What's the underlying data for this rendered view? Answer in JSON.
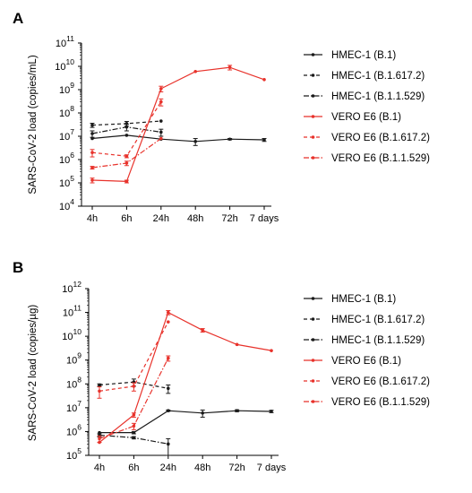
{
  "colors": {
    "black": "#1a1a1a",
    "red": "#e8322b"
  },
  "chart_data": [
    {
      "panel": "A",
      "type": "line",
      "ylabel": "SARS-CoV-2 load (copies/mL)",
      "categories": [
        "4h",
        "6h",
        "24h",
        "48h",
        "72h",
        "7 days"
      ],
      "yscale": "log",
      "ylim": [
        10000,
        100000000000
      ],
      "yticks": [
        4,
        5,
        6,
        7,
        8,
        9,
        10,
        11
      ],
      "series": [
        {
          "name": "HMEC-1 (B.1)",
          "color": "#1a1a1a",
          "dash": "solid",
          "values": [
            8000000,
            11000000,
            7500000,
            6000000,
            7500000,
            7000000
          ],
          "err": [
            0,
            0,
            0,
            2000000,
            500000,
            1000000
          ]
        },
        {
          "name": "HMEC-1 (B.1.617.2)",
          "color": "#1a1a1a",
          "dash": "dash",
          "values": [
            30000000,
            35000000,
            45000000,
            null,
            null,
            null
          ],
          "err": [
            6000000,
            8000000,
            0,
            null,
            null,
            null
          ]
        },
        {
          "name": "HMEC-1 (B.1.1.529)",
          "color": "#1a1a1a",
          "dash": "dashdot",
          "values": [
            13000000,
            25000000,
            15000000,
            null,
            null,
            null
          ],
          "err": [
            4000000,
            8000000,
            5000000,
            null,
            null,
            null
          ]
        },
        {
          "name": "VERO E6 (B.1)",
          "color": "#e8322b",
          "dash": "solid",
          "values": [
            130000,
            115000,
            1100000000,
            6000000000,
            9000000000,
            2700000000
          ],
          "err": [
            30000,
            15000,
            300000000,
            0,
            2000000000,
            0
          ]
        },
        {
          "name": "VERO E6 (B.1.617.2)",
          "color": "#e8322b",
          "dash": "dash",
          "values": [
            2000000,
            1400000,
            300000000,
            null,
            null,
            null
          ],
          "err": [
            700000,
            200000,
            100000000,
            null,
            null,
            null
          ]
        },
        {
          "name": "VERO E6 (B.1.1.529)",
          "color": "#e8322b",
          "dash": "dashdot",
          "values": [
            450000,
            700000,
            8000000,
            null,
            null,
            null
          ],
          "err": [
            60000,
            150000,
            0,
            null,
            null,
            null
          ]
        }
      ]
    },
    {
      "panel": "B",
      "type": "line",
      "ylabel": "SARS-CoV-2 load (copies/µg)",
      "categories": [
        "4h",
        "6h",
        "24h",
        "48h",
        "72h",
        "7 days"
      ],
      "yscale": "log",
      "ylim": [
        100000,
        1000000000000
      ],
      "yticks": [
        5,
        6,
        7,
        8,
        9,
        10,
        11,
        12
      ],
      "series": [
        {
          "name": "HMEC-1 (B.1)",
          "color": "#1a1a1a",
          "dash": "solid",
          "values": [
            900000,
            900000,
            7500000,
            6000000,
            7500000,
            7000000
          ],
          "err": [
            0,
            100000,
            500000,
            2000000,
            700000,
            800000
          ]
        },
        {
          "name": "HMEC-1 (B.1.617.2)",
          "color": "#1a1a1a",
          "dash": "dash",
          "values": [
            90000000,
            120000000,
            65000000,
            null,
            null,
            null
          ],
          "err": [
            10000000,
            40000000,
            25000000,
            null,
            null,
            null
          ]
        },
        {
          "name": "HMEC-1 (B.1.1.529)",
          "color": "#1a1a1a",
          "dash": "dashdot",
          "values": [
            700000,
            550000,
            300000,
            null,
            null,
            null
          ],
          "err": [
            100000,
            60000,
            200000,
            null,
            null,
            null
          ]
        },
        {
          "name": "VERO E6 (B.1)",
          "color": "#e8322b",
          "dash": "solid",
          "values": [
            350000,
            5000000,
            100000000000,
            18000000000,
            4500000000,
            2500000000
          ],
          "err": [
            0,
            1000000,
            20000000000,
            3000000000,
            0,
            0
          ]
        },
        {
          "name": "VERO E6 (B.1.617.2)",
          "color": "#e8322b",
          "dash": "dash",
          "values": [
            50000000,
            80000000,
            40000000000,
            null,
            null,
            null
          ],
          "err": [
            25000000,
            30000000,
            0,
            null,
            null,
            null
          ]
        },
        {
          "name": "VERO E6 (B.1.1.529)",
          "color": "#e8322b",
          "dash": "dashdot",
          "values": [
            500000,
            1700000,
            1200000000,
            null,
            null,
            null
          ],
          "err": [
            150000,
            500000,
            300000000,
            null,
            null,
            null
          ]
        }
      ]
    }
  ]
}
